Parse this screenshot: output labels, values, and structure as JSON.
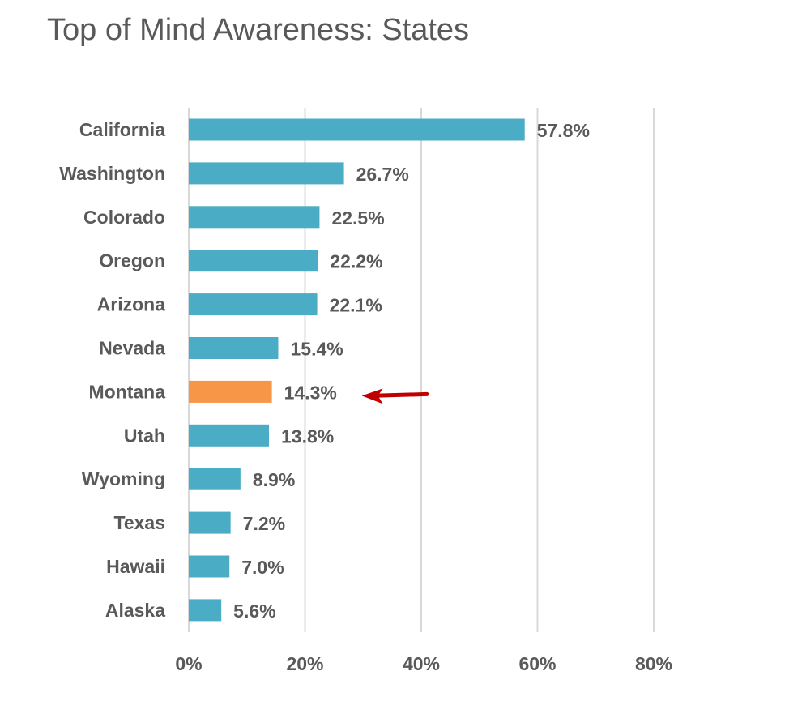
{
  "chart_data": {
    "type": "bar",
    "orientation": "horizontal",
    "title": "Top of Mind Awareness: States",
    "xlabel": "",
    "ylabel": "",
    "categories": [
      "California",
      "Washington",
      "Colorado",
      "Oregon",
      "Arizona",
      "Nevada",
      "Montana",
      "Utah",
      "Wyoming",
      "Texas",
      "Hawaii",
      "Alaska"
    ],
    "values": [
      57.8,
      26.7,
      22.5,
      22.2,
      22.1,
      15.4,
      14.3,
      13.8,
      8.9,
      7.2,
      7.0,
      5.6
    ],
    "value_labels": [
      "57.8%",
      "26.7%",
      "22.5%",
      "22.2%",
      "22.1%",
      "15.4%",
      "14.3%",
      "13.8%",
      "8.9%",
      "7.2%",
      "7.0%",
      "5.6%"
    ],
    "xlim": [
      0,
      80
    ],
    "x_ticks": [
      0,
      20,
      40,
      60,
      80
    ],
    "x_tick_labels": [
      "0%",
      "20%",
      "40%",
      "60%",
      "80%"
    ],
    "grid": "vertical",
    "legend": "none",
    "highlight_category": "Montana",
    "annotation": "arrow-pointing-to-Montana",
    "colors": {
      "bar": "#4BACC6",
      "highlight": "#F79646",
      "arrow": "#C00000",
      "grid": "#D9D9D9",
      "text": "#595959"
    }
  }
}
